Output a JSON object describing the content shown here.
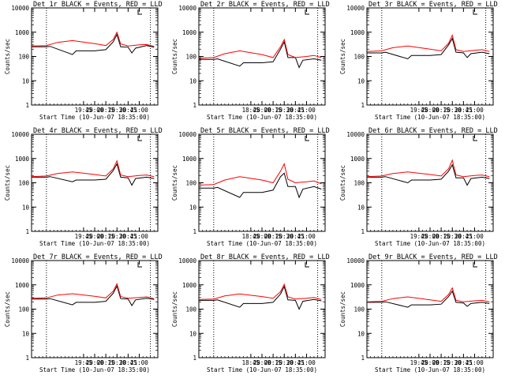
{
  "chart_data": [
    {
      "type": "line",
      "detector": "1r",
      "title": "Det 1r BLACK = Events, RED = LLD",
      "xlabel": "Start Time (10-Jun-07 18:35:00)",
      "ylabel": "Counts/sec",
      "ylim": [
        1,
        10000
      ],
      "ylog": true,
      "yticks": [
        "1",
        "10",
        "100",
        "1000",
        "10000"
      ],
      "xticks": [
        "19:45",
        "20:00",
        "20:15",
        "20:30",
        "20:45",
        "21:00"
      ],
      "series": [
        {
          "color": "#000000",
          "x": [
            "18:35",
            "18:55",
            "19:00",
            "19:30",
            "19:35",
            "20:00",
            "20:15",
            "20:25",
            "20:30",
            "20:35",
            "20:45",
            "20:50",
            "20:55",
            "21:10",
            "21:20"
          ],
          "y": [
            250,
            250,
            260,
            120,
            170,
            170,
            190,
            400,
            800,
            250,
            240,
            140,
            220,
            280,
            240
          ]
        },
        {
          "color": "#ff0000",
          "x": [
            "18:35",
            "18:55",
            "19:10",
            "19:30",
            "20:00",
            "20:15",
            "20:25",
            "20:30",
            "20:35",
            "20:45",
            "21:00",
            "21:10",
            "21:20"
          ],
          "y": [
            270,
            280,
            380,
            450,
            340,
            280,
            500,
            1000,
            330,
            270,
            300,
            310,
            260
          ]
        }
      ]
    },
    {
      "type": "line",
      "detector": "2r",
      "title": "Det 2r BLACK = Events, RED = LLD",
      "xlabel": "Start Time (10-Jun-07 18:35:00)",
      "ylabel": "Counts/sec",
      "ylim": [
        1,
        10000
      ],
      "ylog": true,
      "yticks": [
        "1",
        "10",
        "100",
        "1000",
        "10000"
      ],
      "xticks": [
        "18:45",
        "20:00",
        "20:15",
        "20:30",
        "20:45",
        "21:00"
      ],
      "series": [
        {
          "color": "#000000",
          "x": [
            "18:35",
            "18:55",
            "19:00",
            "19:30",
            "19:35",
            "20:00",
            "20:15",
            "20:25",
            "20:30",
            "20:35",
            "20:45",
            "20:50",
            "20:55",
            "21:10",
            "21:20"
          ],
          "y": [
            75,
            75,
            80,
            40,
            55,
            55,
            60,
            200,
            400,
            90,
            90,
            35,
            70,
            80,
            70
          ]
        },
        {
          "color": "#ff0000",
          "x": [
            "18:35",
            "18:55",
            "19:10",
            "19:30",
            "20:00",
            "20:15",
            "20:25",
            "20:30",
            "20:35",
            "20:45",
            "21:00",
            "21:10",
            "21:20"
          ],
          "y": [
            85,
            90,
            130,
            170,
            120,
            90,
            250,
            500,
            120,
            90,
            100,
            110,
            90
          ]
        }
      ]
    },
    {
      "type": "line",
      "detector": "3r",
      "title": "Det 3r BLACK = Events, RED = LLD",
      "xlabel": "Start Time (10-Jun-07 18:35:00)",
      "ylabel": "Counts/sec",
      "ylim": [
        1,
        10000
      ],
      "ylog": true,
      "yticks": [
        "1",
        "10",
        "100",
        "1000",
        "10000"
      ],
      "xticks": [
        "19:45",
        "20:00",
        "20:15",
        "20:30",
        "20:45",
        "21:00"
      ],
      "series": [
        {
          "color": "#000000",
          "x": [
            "18:35",
            "18:55",
            "19:00",
            "19:30",
            "19:35",
            "20:00",
            "20:15",
            "20:25",
            "20:30",
            "20:35",
            "20:45",
            "20:50",
            "20:55",
            "21:10",
            "21:20"
          ],
          "y": [
            140,
            140,
            150,
            80,
            110,
            110,
            120,
            300,
            550,
            150,
            140,
            90,
            130,
            150,
            130
          ]
        },
        {
          "color": "#ff0000",
          "x": [
            "18:35",
            "18:55",
            "19:10",
            "19:30",
            "20:00",
            "20:15",
            "20:25",
            "20:30",
            "20:35",
            "20:45",
            "21:00",
            "21:10",
            "21:20"
          ],
          "y": [
            160,
            170,
            230,
            270,
            200,
            170,
            350,
            750,
            190,
            160,
            180,
            190,
            160
          ]
        }
      ]
    },
    {
      "type": "line",
      "detector": "4r",
      "title": "Det 4r BLACK = Events, RED = LLD",
      "xlabel": "Start Time (10-Jun-07 18:35:00)",
      "ylabel": "Counts/sec",
      "ylim": [
        1,
        10000
      ],
      "ylog": true,
      "yticks": [
        "1",
        "10",
        "100",
        "1000",
        "10000"
      ],
      "xticks": [
        "19:45",
        "20:00",
        "20:15",
        "20:30",
        "20:45",
        "21:00"
      ],
      "series": [
        {
          "color": "#000000",
          "x": [
            "18:35",
            "18:55",
            "19:00",
            "19:30",
            "19:35",
            "20:00",
            "20:15",
            "20:25",
            "20:30",
            "20:35",
            "20:45",
            "20:50",
            "20:55",
            "21:10",
            "21:20"
          ],
          "y": [
            170,
            170,
            180,
            110,
            130,
            130,
            140,
            320,
            600,
            170,
            160,
            80,
            150,
            170,
            150
          ]
        },
        {
          "color": "#ff0000",
          "x": [
            "18:35",
            "18:55",
            "19:10",
            "19:30",
            "20:00",
            "20:15",
            "20:25",
            "20:30",
            "20:35",
            "20:45",
            "21:00",
            "21:10",
            "21:20"
          ],
          "y": [
            180,
            190,
            240,
            280,
            220,
            190,
            380,
            800,
            210,
            180,
            200,
            210,
            180
          ]
        }
      ]
    },
    {
      "type": "line",
      "detector": "5r",
      "title": "Det 5r BLACK = Events, RED = LLD",
      "xlabel": "Start Time (10-Jun-07 18:35:00)",
      "ylabel": "Counts/sec",
      "ylim": [
        1,
        10000
      ],
      "ylog": true,
      "yticks": [
        "1",
        "10",
        "100",
        "1000",
        "10000"
      ],
      "xticks": [
        "18:45",
        "20:00",
        "20:15",
        "20:30",
        "20:45",
        "21:00"
      ],
      "series": [
        {
          "color": "#000000",
          "x": [
            "18:35",
            "18:55",
            "19:00",
            "19:30",
            "19:35",
            "20:00",
            "20:15",
            "20:25",
            "20:30",
            "20:35",
            "20:45",
            "20:50",
            "20:55",
            "21:10",
            "21:20"
          ],
          "y": [
            60,
            60,
            65,
            25,
            40,
            40,
            50,
            180,
            250,
            70,
            70,
            25,
            55,
            70,
            55
          ]
        },
        {
          "color": "#ff0000",
          "x": [
            "18:35",
            "18:55",
            "19:10",
            "19:30",
            "20:00",
            "20:15",
            "20:25",
            "20:30",
            "20:35",
            "20:45",
            "21:00",
            "21:10",
            "21:20"
          ],
          "y": [
            80,
            85,
            130,
            180,
            130,
            100,
            300,
            600,
            140,
            100,
            110,
            120,
            90
          ]
        }
      ]
    },
    {
      "type": "line",
      "detector": "6r",
      "title": "Det 6r BLACK = Events, RED = LLD",
      "xlabel": "Start Time (10-Jun-07 18:35:00)",
      "ylabel": "Counts/sec",
      "ylim": [
        1,
        10000
      ],
      "ylog": true,
      "yticks": [
        "1",
        "10",
        "100",
        "1000",
        "10000"
      ],
      "xticks": [
        "19:45",
        "20:00",
        "20:15",
        "20:30",
        "20:45",
        "21:00"
      ],
      "series": [
        {
          "color": "#000000",
          "x": [
            "18:35",
            "18:55",
            "19:00",
            "19:30",
            "19:35",
            "20:00",
            "20:15",
            "20:25",
            "20:30",
            "20:35",
            "20:45",
            "20:50",
            "20:55",
            "21:10",
            "21:20"
          ],
          "y": [
            170,
            170,
            180,
            100,
            130,
            130,
            140,
            300,
            550,
            160,
            160,
            80,
            150,
            170,
            150
          ]
        },
        {
          "color": "#ff0000",
          "x": [
            "18:35",
            "18:55",
            "19:10",
            "19:30",
            "20:00",
            "20:15",
            "20:25",
            "20:30",
            "20:35",
            "20:45",
            "21:00",
            "21:10",
            "21:20"
          ],
          "y": [
            180,
            190,
            240,
            280,
            220,
            190,
            380,
            850,
            210,
            180,
            200,
            210,
            180
          ]
        }
      ]
    },
    {
      "type": "line",
      "detector": "7r",
      "title": "Det 7r BLACK = Events, RED = LLD",
      "xlabel": "Start Time (10-Jun-07 18:35:00)",
      "ylabel": "Counts/sec",
      "ylim": [
        1,
        10000
      ],
      "ylog": true,
      "yticks": [
        "1",
        "10",
        "100",
        "1000",
        "10000"
      ],
      "xticks": [
        "19:45",
        "20:00",
        "20:15",
        "20:30",
        "20:45",
        "21:00"
      ],
      "series": [
        {
          "color": "#000000",
          "x": [
            "18:35",
            "18:55",
            "19:00",
            "19:30",
            "19:35",
            "20:00",
            "20:15",
            "20:25",
            "20:30",
            "20:35",
            "20:45",
            "20:50",
            "20:55",
            "21:10",
            "21:20"
          ],
          "y": [
            260,
            260,
            270,
            150,
            190,
            190,
            210,
            450,
            900,
            270,
            260,
            140,
            240,
            280,
            250
          ]
        },
        {
          "color": "#ff0000",
          "x": [
            "18:35",
            "18:55",
            "19:10",
            "19:30",
            "20:00",
            "20:15",
            "20:25",
            "20:30",
            "20:35",
            "20:45",
            "21:00",
            "21:10",
            "21:20"
          ],
          "y": [
            280,
            290,
            380,
            430,
            340,
            290,
            550,
            1100,
            330,
            280,
            300,
            320,
            270
          ]
        }
      ]
    },
    {
      "type": "line",
      "detector": "8r",
      "title": "Det 8r BLACK = Events, RED = LLD",
      "xlabel": "Start Time (10-Jun-07 18:35:00)",
      "ylabel": "Counts/sec",
      "ylim": [
        1,
        10000
      ],
      "ylog": true,
      "yticks": [
        "1",
        "10",
        "100",
        "1000",
        "10000"
      ],
      "xticks": [
        "18:45",
        "20:00",
        "20:15",
        "20:30",
        "20:45",
        "21:00"
      ],
      "series": [
        {
          "color": "#000000",
          "x": [
            "18:35",
            "18:55",
            "19:00",
            "19:30",
            "19:35",
            "20:00",
            "20:15",
            "20:25",
            "20:30",
            "20:35",
            "20:45",
            "20:50",
            "20:55",
            "21:10",
            "21:20"
          ],
          "y": [
            230,
            230,
            240,
            120,
            170,
            170,
            190,
            420,
            850,
            240,
            230,
            100,
            210,
            250,
            220
          ]
        },
        {
          "color": "#ff0000",
          "x": [
            "18:35",
            "18:55",
            "19:10",
            "19:30",
            "20:00",
            "20:15",
            "20:25",
            "20:30",
            "20:35",
            "20:45",
            "21:00",
            "21:10",
            "21:20"
          ],
          "y": [
            250,
            260,
            350,
            420,
            330,
            280,
            520,
            1050,
            320,
            260,
            280,
            300,
            250
          ]
        }
      ]
    },
    {
      "type": "line",
      "detector": "9r",
      "title": "Det 9r BLACK = Events, RED = LLD",
      "xlabel": "Start Time (10-Jun-07 18:35:00)",
      "ylabel": "Counts/sec",
      "ylim": [
        1,
        10000
      ],
      "ylog": true,
      "yticks": [
        "1",
        "10",
        "100",
        "1000",
        "10000"
      ],
      "xticks": [
        "19:45",
        "20:00",
        "20:15",
        "20:30",
        "20:45",
        "21:00"
      ],
      "series": [
        {
          "color": "#000000",
          "x": [
            "18:35",
            "18:55",
            "19:00",
            "19:30",
            "19:35",
            "20:00",
            "20:15",
            "20:25",
            "20:30",
            "20:35",
            "20:45",
            "20:50",
            "20:55",
            "21:10",
            "21:20"
          ],
          "y": [
            190,
            190,
            200,
            120,
            150,
            150,
            160,
            330,
            550,
            190,
            180,
            130,
            170,
            190,
            170
          ]
        },
        {
          "color": "#ff0000",
          "x": [
            "18:35",
            "18:55",
            "19:10",
            "19:30",
            "20:00",
            "20:15",
            "20:25",
            "20:30",
            "20:35",
            "20:45",
            "21:00",
            "21:10",
            "21:20"
          ],
          "y": [
            200,
            210,
            270,
            320,
            240,
            210,
            400,
            750,
            230,
            200,
            220,
            230,
            200
          ]
        }
      ]
    }
  ]
}
